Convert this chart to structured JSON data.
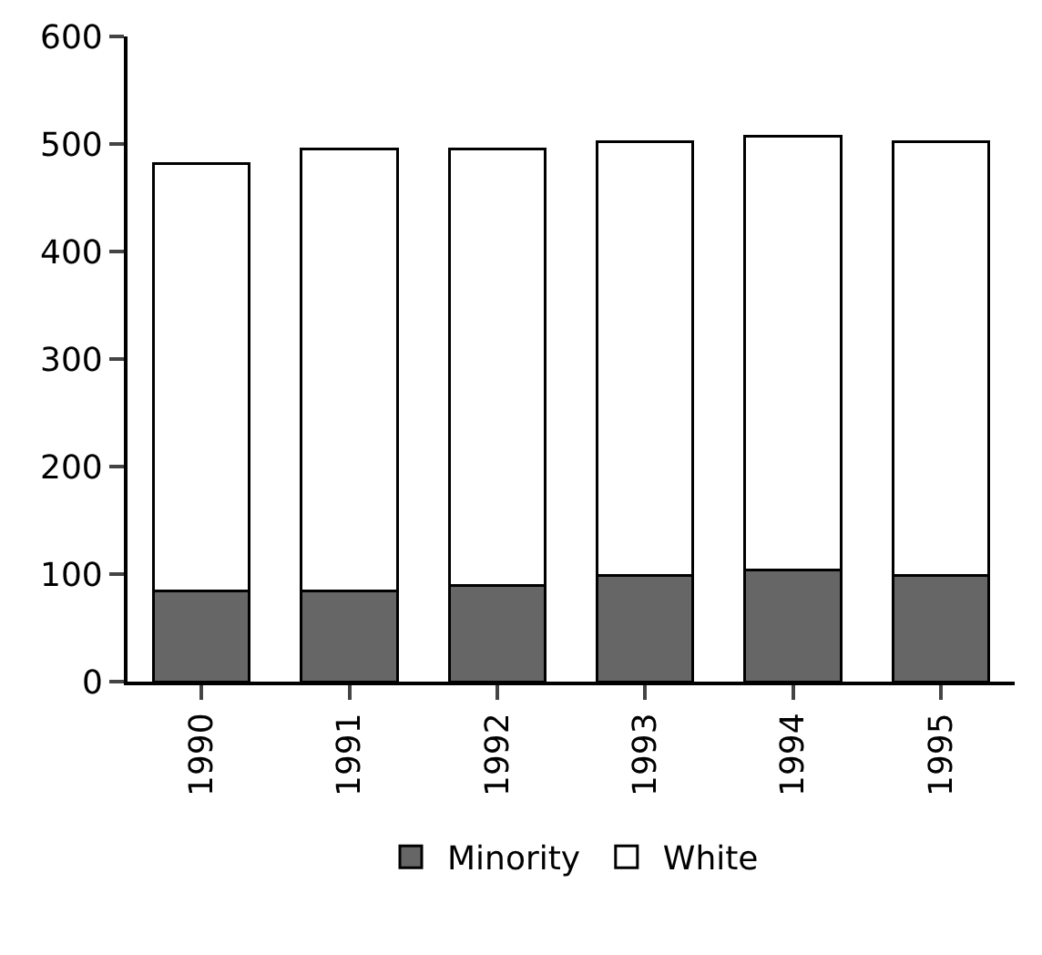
{
  "chart_data": {
    "type": "bar",
    "stacked": true,
    "categories": [
      "1990",
      "1991",
      "1992",
      "1993",
      "1994",
      "1995"
    ],
    "series": [
      {
        "name": "Minority",
        "color": "#666666",
        "values": [
          84,
          84,
          89,
          99,
          104,
          99
        ]
      },
      {
        "name": "White",
        "color": "#ffffff",
        "values": [
          398,
          411,
          406,
          403,
          403,
          403
        ]
      }
    ],
    "ylim": [
      0,
      600
    ],
    "yticks": [
      0,
      100,
      200,
      300,
      400,
      500,
      600
    ],
    "grid": false,
    "legend": "bottom"
  }
}
